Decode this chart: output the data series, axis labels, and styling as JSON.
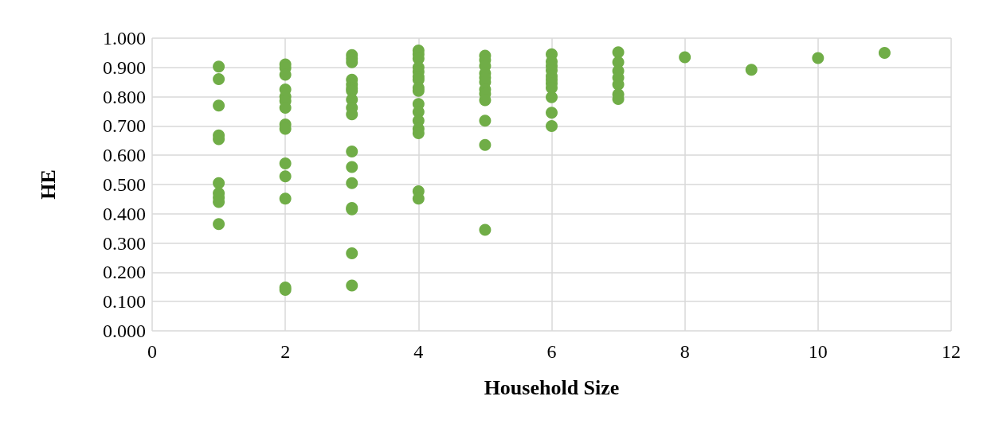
{
  "chart_data": {
    "type": "scatter",
    "xlabel": "Household Size",
    "ylabel": "HE",
    "color": "#70ad47",
    "marker": "circle",
    "grid": true,
    "x": [
      1,
      1,
      1,
      1,
      1,
      1,
      1,
      1,
      1,
      1,
      2,
      2,
      2,
      2,
      2,
      2,
      2,
      2,
      2,
      2,
      2,
      2,
      2,
      2,
      3,
      3,
      3,
      3,
      3,
      3,
      3,
      3,
      3,
      3,
      3,
      3,
      3,
      3,
      3,
      3,
      3,
      4,
      4,
      4,
      4,
      4,
      4,
      4,
      4,
      4,
      4,
      4,
      4,
      4,
      4,
      4,
      4,
      5,
      5,
      5,
      5,
      5,
      5,
      5,
      5,
      5,
      5,
      5,
      5,
      6,
      6,
      6,
      6,
      6,
      6,
      6,
      6,
      6,
      6,
      6,
      7,
      7,
      7,
      7,
      7,
      7,
      7,
      8,
      9,
      10,
      11
    ],
    "values": [
      0.903,
      0.86,
      0.77,
      0.668,
      0.655,
      0.505,
      0.47,
      0.455,
      0.44,
      0.365,
      0.91,
      0.898,
      0.875,
      0.825,
      0.8,
      0.785,
      0.762,
      0.705,
      0.69,
      0.572,
      0.528,
      0.452,
      0.148,
      0.14,
      0.942,
      0.93,
      0.918,
      0.858,
      0.842,
      0.828,
      0.82,
      0.79,
      0.762,
      0.74,
      0.613,
      0.56,
      0.505,
      0.42,
      0.415,
      0.265,
      0.155,
      0.958,
      0.945,
      0.93,
      0.9,
      0.885,
      0.868,
      0.858,
      0.83,
      0.82,
      0.775,
      0.748,
      0.718,
      0.69,
      0.675,
      0.477,
      0.452,
      0.94,
      0.925,
      0.905,
      0.88,
      0.865,
      0.85,
      0.825,
      0.81,
      0.788,
      0.718,
      0.635,
      0.345,
      0.945,
      0.92,
      0.905,
      0.89,
      0.87,
      0.858,
      0.845,
      0.83,
      0.798,
      0.745,
      0.7,
      0.952,
      0.918,
      0.888,
      0.865,
      0.842,
      0.808,
      0.792,
      0.935,
      0.892,
      0.932,
      0.95
    ],
    "xlim": [
      0,
      12
    ],
    "xticks": [
      0,
      2,
      4,
      6,
      8,
      10,
      12
    ],
    "ylim": [
      0,
      1
    ],
    "yticks": [
      {
        "value": 0,
        "label": "0.000"
      },
      {
        "value": 0.1,
        "label": "0.100"
      },
      {
        "value": 0.2,
        "label": "0.200"
      },
      {
        "value": 0.3,
        "label": "0.300"
      },
      {
        "value": 0.4,
        "label": "0.400"
      },
      {
        "value": 0.5,
        "label": "0.500"
      },
      {
        "value": 0.6,
        "label": "0.600"
      },
      {
        "value": 0.7,
        "label": "0.700"
      },
      {
        "value": 0.8,
        "label": "0.800"
      },
      {
        "value": 0.9,
        "label": "0.900"
      },
      {
        "value": 1,
        "label": "1.000"
      }
    ]
  }
}
